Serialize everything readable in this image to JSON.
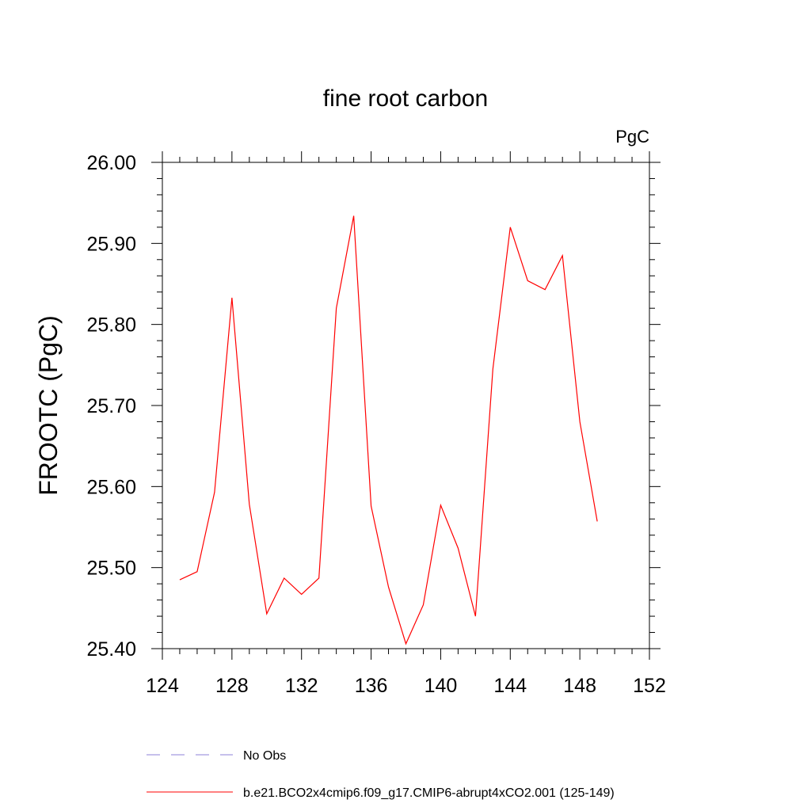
{
  "chart_data": {
    "type": "line",
    "title": "fine root carbon",
    "units_label": "PgC",
    "ylabel": "FROOTC  (PgC)",
    "xlabel": "",
    "xlim": [
      124,
      152
    ],
    "ylim": [
      25.4,
      26.0
    ],
    "x_ticks": [
      "124",
      "128",
      "132",
      "136",
      "140",
      "144",
      "148",
      "152"
    ],
    "y_ticks": [
      "25.40",
      "25.50",
      "25.60",
      "25.70",
      "25.80",
      "25.90",
      "26.00"
    ],
    "x": [
      125,
      126,
      127,
      128,
      129,
      130,
      131,
      132,
      133,
      134,
      135,
      136,
      137,
      138,
      139,
      140,
      141,
      142,
      143,
      144,
      145,
      146,
      147,
      148,
      149
    ],
    "series": [
      {
        "name": "b.e21.BCO2x4cmip6.f09_g17.CMIP6-abrupt4xCO2.001 (125-149)",
        "color": "#ff0000",
        "values": [
          25.485,
          25.495,
          25.593,
          25.833,
          25.578,
          25.443,
          25.487,
          25.467,
          25.487,
          25.82,
          25.934,
          25.576,
          25.476,
          25.406,
          25.454,
          25.577,
          25.524,
          25.44,
          25.745,
          25.92,
          25.854,
          25.843,
          25.885,
          25.68,
          25.557
        ]
      }
    ],
    "legend": [
      {
        "label": "No Obs",
        "color": "#6a5acd",
        "style": "dashed"
      },
      {
        "label": "b.e21.BCO2x4cmip6.f09_g17.CMIP6-abrupt4xCO2.001 (125-149)",
        "color": "#ff0000",
        "style": "solid"
      }
    ],
    "legend_position": "bottom",
    "grid": false
  }
}
